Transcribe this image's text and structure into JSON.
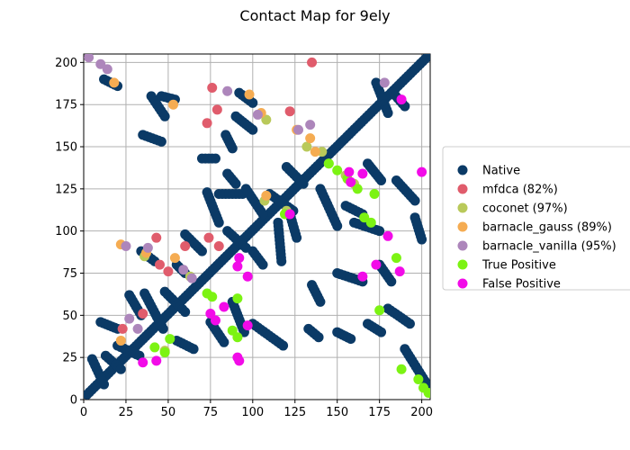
{
  "chart_data": {
    "type": "scatter",
    "title": "Contact Map for 9ely",
    "xlabel": "",
    "ylabel": "",
    "xlim": [
      0,
      205
    ],
    "ylim": [
      0,
      205
    ],
    "xticks": [
      0,
      25,
      50,
      75,
      100,
      125,
      150,
      175,
      200
    ],
    "yticks": [
      0,
      25,
      50,
      75,
      100,
      125,
      150,
      175,
      200
    ],
    "grid": true,
    "legend_position": "right",
    "series": [
      {
        "name": "Native",
        "color": "#0b3a66",
        "diagonal_band": [
          [
            2,
            3
          ],
          [
            205,
            205
          ]
        ],
        "segments": [
          [
            [
              12,
              190
            ],
            [
              20,
              186
            ]
          ],
          [
            [
              40,
              180
            ],
            [
              48,
              168
            ]
          ],
          [
            [
              46,
              180
            ],
            [
              54,
              178
            ]
          ],
          [
            [
              92,
              182
            ],
            [
              100,
              176
            ]
          ],
          [
            [
              90,
              168
            ],
            [
              100,
              160
            ]
          ],
          [
            [
              84,
              157
            ],
            [
              88,
              149
            ]
          ],
          [
            [
              35,
              157
            ],
            [
              46,
              153
            ]
          ],
          [
            [
              70,
              143
            ],
            [
              78,
              143
            ]
          ],
          [
            [
              85,
              134
            ],
            [
              90,
              128
            ]
          ],
          [
            [
              73,
              123
            ],
            [
              80,
              105
            ]
          ],
          [
            [
              80,
              122
            ],
            [
              94,
              122
            ]
          ],
          [
            [
              96,
              125
            ],
            [
              106,
              110
            ]
          ],
          [
            [
              110,
              122
            ],
            [
              124,
              112
            ]
          ],
          [
            [
              115,
              105
            ],
            [
              117,
              82
            ]
          ],
          [
            [
              122,
              110
            ],
            [
              126,
              96
            ]
          ],
          [
            [
              140,
              125
            ],
            [
              150,
              103
            ]
          ],
          [
            [
              160,
              105
            ],
            [
              175,
              100
            ]
          ],
          [
            [
              173,
              188
            ],
            [
              180,
              170
            ]
          ],
          [
            [
              183,
              182
            ],
            [
              190,
              174
            ]
          ],
          [
            [
              185,
              130
            ],
            [
              196,
              118
            ]
          ],
          [
            [
              196,
              108
            ],
            [
              200,
              95
            ]
          ],
          [
            [
              180,
              54
            ],
            [
              193,
              45
            ]
          ],
          [
            [
              190,
              30
            ],
            [
              205,
              6
            ]
          ],
          [
            [
              168,
              45
            ],
            [
              176,
              40
            ]
          ],
          [
            [
              150,
              40
            ],
            [
              158,
              36
            ]
          ],
          [
            [
              133,
              42
            ],
            [
              139,
              37
            ]
          ],
          [
            [
              100,
              45
            ],
            [
              118,
              32
            ]
          ],
          [
            [
              75,
              46
            ],
            [
              83,
              34
            ]
          ],
          [
            [
              88,
              58
            ],
            [
              95,
              40
            ]
          ],
          [
            [
              55,
              35
            ],
            [
              65,
              30
            ]
          ],
          [
            [
              36,
              63
            ],
            [
              47,
              42
            ]
          ],
          [
            [
              48,
              64
            ],
            [
              60,
              52
            ]
          ],
          [
            [
              20,
              32
            ],
            [
              33,
              26
            ]
          ],
          [
            [
              10,
              46
            ],
            [
              20,
              42
            ]
          ],
          [
            [
              5,
              24
            ],
            [
              12,
              9
            ]
          ],
          [
            [
              13,
              26
            ],
            [
              22,
              18
            ]
          ],
          [
            [
              27,
              62
            ],
            [
              34,
              50
            ]
          ],
          [
            [
              60,
              98
            ],
            [
              70,
              88
            ]
          ],
          [
            [
              34,
              88
            ],
            [
              42,
              82
            ]
          ],
          [
            [
              55,
              80
            ],
            [
              60,
              75
            ]
          ],
          [
            [
              85,
              100
            ],
            [
              96,
              90
            ]
          ],
          [
            [
              100,
              88
            ],
            [
              106,
              80
            ]
          ],
          [
            [
              135,
              68
            ],
            [
              140,
              58
            ]
          ],
          [
            [
              150,
              75
            ],
            [
              165,
              70
            ]
          ],
          [
            [
              175,
              80
            ],
            [
              182,
              70
            ]
          ],
          [
            [
              168,
              140
            ],
            [
              176,
              130
            ]
          ],
          [
            [
              155,
              115
            ],
            [
              165,
              110
            ]
          ],
          [
            [
              120,
              138
            ],
            [
              130,
              128
            ]
          ]
        ]
      },
      {
        "name": "mfdca (82%)",
        "color": "#e05c6c",
        "points": [
          [
            135,
            200
          ],
          [
            76,
            185
          ],
          [
            79,
            172
          ],
          [
            73,
            164
          ],
          [
            122,
            171
          ],
          [
            43,
            96
          ],
          [
            60,
            91
          ],
          [
            74,
            96
          ],
          [
            80,
            91
          ],
          [
            23,
            42
          ],
          [
            35,
            51
          ],
          [
            45,
            80
          ],
          [
            50,
            76
          ]
        ]
      },
      {
        "name": "coconet (97%)",
        "color": "#b9c95a",
        "points": [
          [
            108,
            166
          ],
          [
            107,
            118
          ],
          [
            132,
            150
          ],
          [
            141,
            147
          ],
          [
            145,
            140
          ],
          [
            155,
            133
          ],
          [
            160,
            128
          ],
          [
            120,
            112
          ],
          [
            36,
            85
          ],
          [
            63,
            73
          ],
          [
            48,
            29
          ]
        ]
      },
      {
        "name": "barnacle_gauss (89%)",
        "color": "#f5ac52",
        "points": [
          [
            18,
            188
          ],
          [
            53,
            175
          ],
          [
            98,
            181
          ],
          [
            105,
            170
          ],
          [
            126,
            160
          ],
          [
            134,
            155
          ],
          [
            137,
            147
          ],
          [
            22,
            92
          ],
          [
            54,
            84
          ],
          [
            22,
            35
          ],
          [
            37,
            87
          ],
          [
            108,
            121
          ]
        ]
      },
      {
        "name": "barnacle_vanilla (95%)",
        "color": "#ad86bb",
        "points": [
          [
            3,
            203
          ],
          [
            10,
            199
          ],
          [
            14,
            196
          ],
          [
            85,
            183
          ],
          [
            103,
            169
          ],
          [
            127,
            160
          ],
          [
            134,
            163
          ],
          [
            178,
            188
          ],
          [
            25,
            91
          ],
          [
            38,
            90
          ],
          [
            59,
            77
          ],
          [
            64,
            72
          ],
          [
            27,
            48
          ],
          [
            32,
            42
          ]
        ]
      },
      {
        "name": "True Positive",
        "color": "#7cf313",
        "points": [
          [
            145,
            140
          ],
          [
            150,
            136
          ],
          [
            156,
            131
          ],
          [
            162,
            125
          ],
          [
            166,
            108
          ],
          [
            170,
            105
          ],
          [
            172,
            122
          ],
          [
            185,
            84
          ],
          [
            175,
            53
          ],
          [
            119,
            110
          ],
          [
            73,
            63
          ],
          [
            76,
            61
          ],
          [
            88,
            41
          ],
          [
            91,
            37
          ],
          [
            91,
            60
          ],
          [
            42,
            31
          ],
          [
            48,
            28
          ],
          [
            51,
            36
          ],
          [
            188,
            18
          ],
          [
            198,
            12
          ],
          [
            201,
            7
          ],
          [
            204,
            4
          ]
        ]
      },
      {
        "name": "False Positive",
        "color": "#f20be8",
        "points": [
          [
            200,
            135
          ],
          [
            188,
            178
          ],
          [
            157,
            135
          ],
          [
            165,
            134
          ],
          [
            158,
            129
          ],
          [
            180,
            97
          ],
          [
            173,
            80
          ],
          [
            187,
            76
          ],
          [
            165,
            73
          ],
          [
            122,
            110
          ],
          [
            92,
            84
          ],
          [
            91,
            79
          ],
          [
            97,
            73
          ],
          [
            83,
            55
          ],
          [
            75,
            51
          ],
          [
            78,
            47
          ],
          [
            97,
            44
          ],
          [
            91,
            25
          ],
          [
            92,
            23
          ],
          [
            35,
            22
          ],
          [
            43,
            23
          ]
        ]
      }
    ]
  }
}
